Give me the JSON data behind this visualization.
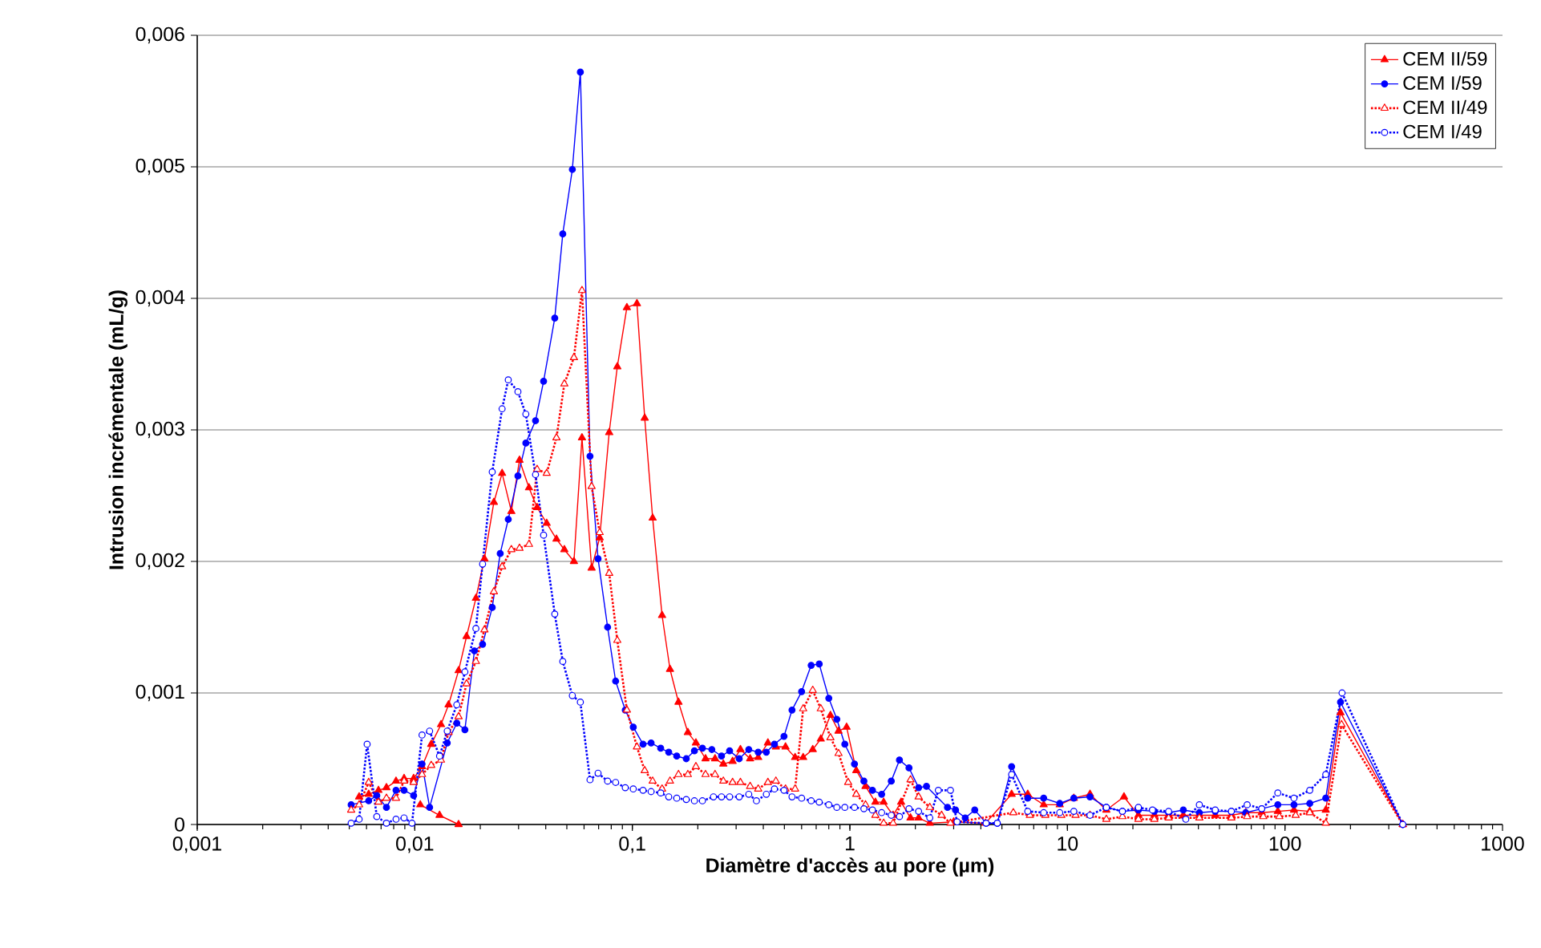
{
  "chart_data": {
    "type": "line",
    "xlabel": "Diamètre d'accès au pore (µm)",
    "ylabel": "Intrusion incrémentale (mL/g)",
    "log": "x",
    "grid": "y",
    "legend": "top right",
    "xlim": [
      0.001,
      1000
    ],
    "ylim": [
      0,
      0.006
    ],
    "xticks": [
      {
        "value": 0.001,
        "label": "0,001"
      },
      {
        "value": 0.01,
        "label": "0,01"
      },
      {
        "value": 0.1,
        "label": "0,1"
      },
      1,
      10,
      100,
      1000
    ],
    "yticks": [
      0,
      {
        "value": 0.001,
        "label": "0,001"
      },
      {
        "value": 0.002,
        "label": "0,002"
      },
      {
        "value": 0.003,
        "label": "0,003"
      },
      {
        "value": 0.004,
        "label": "0,004"
      },
      {
        "value": 0.005,
        "label": "0,005"
      },
      {
        "value": 0.006,
        "label": "0,006"
      }
    ],
    "series": [
      {
        "name": "CEM II/59",
        "color": "#ff0000",
        "marker": "triangle",
        "line_style": "solid",
        "x": [
          0.00555,
          0.00614,
          0.00681,
          0.00741,
          0.0082,
          0.00893,
          0.00988,
          0.0108,
          0.0119,
          0.0132,
          0.0143,
          0.0159,
          0.0173,
          0.0191,
          0.0209,
          0.0231,
          0.0252,
          0.0278,
          0.0303,
          0.0335,
          0.0365,
          0.0404,
          0.0448,
          0.0487,
          0.0539,
          0.0587,
          0.065,
          0.0708,
          0.0783,
          0.0853,
          0.0944,
          0.105,
          0.114,
          0.124,
          0.137,
          0.149,
          0.163,
          0.18,
          0.196,
          0.217,
          0.24,
          0.262,
          0.289,
          0.314,
          0.348,
          0.379,
          0.42,
          0.457,
          0.506,
          0.56,
          0.61,
          0.675,
          0.735,
          0.814,
          0.887,
          0.966,
          1.07,
          1.18,
          1.31,
          1.43,
          1.58,
          1.72,
          1.9,
          2.07,
          2.33,
          3.0,
          4.2,
          5.54,
          6.57,
          7.78,
          9.22,
          10.7,
          12.7,
          15.1,
          18.2,
          21.2,
          25.1,
          29.2,
          34.1,
          40.4,
          47.8,
          56.7,
          66,
          78.2,
          92.7,
          110,
          130,
          154,
          180,
          348
        ],
        "values": [
          0.00021,
          0.00023,
          0.00026,
          0.00028,
          0.00033,
          0.00035,
          0.00035,
          0.00044,
          0.00061,
          0.00076,
          0.00091,
          0.00117,
          0.00143,
          0.00172,
          0.00202,
          0.00245,
          0.00267,
          0.00238,
          0.00277,
          0.00256,
          0.00241,
          0.00229,
          0.00217,
          0.00209,
          0.002,
          0.00294,
          0.00195,
          0.00218,
          0.00298,
          0.00348,
          0.00393,
          0.00396,
          0.00309,
          0.00233,
          0.00159,
          0.00118,
          0.00093,
          0.0007,
          0.00062,
          0.0005,
          0.0005,
          0.00046,
          0.00048,
          0.00057,
          0.0005,
          0.00051,
          0.00062,
          0.00059,
          0.00059,
          0.00051,
          0.00051,
          0.00057,
          0.00065,
          0.00083,
          0.00071,
          0.00074,
          0.00041,
          0.00029,
          0.00017,
          0.00017,
          7e-05,
          0.00017,
          5e-05,
          5e-05,
          1e-05,
          2e-05,
          1e-05,
          0.00023,
          0.00023,
          0.00015,
          0.00015,
          0.0002,
          0.00023,
          0.00011,
          0.00021,
          7e-05,
          7e-05,
          7e-05,
          7e-05,
          7e-05,
          7e-05,
          7e-05,
          9e-05,
          9e-05,
          0.0001,
          0.00011,
          0.0001,
          0.00011,
          0.00085,
          0
        ]
      },
      {
        "color": "#ff0000",
        "marker": "triangle",
        "line_style": "solid",
        "x": [
          0.0106,
          0.013,
          0.0159
        ],
        "values": [
          0.00015,
          7e-05,
          0
        ]
      },
      {
        "name": "CEM I/59",
        "color": "#0000ff",
        "marker": "circle",
        "line_style": "solid",
        "x": [
          0.0051,
          0.00614,
          0.00669,
          0.00741,
          0.0082,
          0.00893,
          0.00988,
          0.0108,
          0.0117,
          0.0141,
          0.0156,
          0.017,
          0.0188,
          0.0205,
          0.0227,
          0.0247,
          0.0269,
          0.0298,
          0.0324,
          0.0359,
          0.0391,
          0.044,
          0.0479,
          0.053,
          0.0577,
          0.0639,
          0.0696,
          0.077,
          0.0838,
          0.0928,
          0.101,
          0.112,
          0.122,
          0.135,
          0.147,
          0.16,
          0.177,
          0.193,
          0.21,
          0.232,
          0.257,
          0.28,
          0.31,
          0.343,
          0.379,
          0.413,
          0.45,
          0.498,
          0.542,
          0.6,
          0.664,
          0.723,
          0.8,
          0.871,
          0.948,
          1.05,
          1.16,
          1.27,
          1.4,
          1.55,
          1.69,
          1.87,
          2.07,
          2.25,
          2.81,
          3.06,
          3.39,
          3.75,
          4.23,
          4.76,
          5.54,
          6.57,
          7.78,
          9.22,
          10.7,
          12.7,
          15.1,
          17.9,
          21.2,
          25.1,
          29.2,
          34.1,
          40.4,
          47.8,
          56.7,
          66,
          78.2,
          92.7,
          110,
          130,
          154,
          180,
          348
        ],
        "values": [
          0.00015,
          0.00018,
          0.00022,
          0.00013,
          0.00026,
          0.00026,
          0.00022,
          0.00046,
          0.00013,
          0.00062,
          0.00077,
          0.00072,
          0.00132,
          0.00137,
          0.00165,
          0.00206,
          0.00232,
          0.00265,
          0.0029,
          0.00307,
          0.00337,
          0.00385,
          0.00449,
          0.00498,
          0.00572,
          0.0028,
          0.00202,
          0.0015,
          0.00109,
          0.00087,
          0.00074,
          0.00061,
          0.00062,
          0.00058,
          0.00055,
          0.00052,
          0.0005,
          0.00056,
          0.00058,
          0.00057,
          0.00052,
          0.00056,
          0.0005,
          0.00057,
          0.00055,
          0.00055,
          0.00061,
          0.00067,
          0.00087,
          0.00101,
          0.00121,
          0.00122,
          0.00096,
          0.0008,
          0.00061,
          0.00046,
          0.00033,
          0.00026,
          0.00023,
          0.00033,
          0.00049,
          0.00043,
          0.00028,
          0.00029,
          0.00013,
          0.00011,
          5e-05,
          0.00011,
          1e-05,
          1e-05,
          0.00044,
          0.0002,
          0.0002,
          0.00016,
          0.0002,
          0.00021,
          0.00013,
          0.0001,
          0.00011,
          0.0001,
          9e-05,
          0.00011,
          9e-05,
          0.0001,
          0.0001,
          9e-05,
          0.00012,
          0.00015,
          0.00015,
          0.00016,
          0.0002,
          0.00093,
          0
        ]
      },
      {
        "name": "CEM II/49",
        "color": "#ff0000",
        "marker": "triangle",
        "line_style": "dotted",
        "x": [
          0.0051,
          0.00555,
          0.00614,
          0.00681,
          0.00741,
          0.0082,
          0.00893,
          0.00988,
          0.0108,
          0.0119,
          0.0132,
          0.0143,
          0.0159,
          0.0173,
          0.0191,
          0.0209,
          0.0231,
          0.0252,
          0.0278,
          0.0303,
          0.0335,
          0.0365,
          0.0404,
          0.0448,
          0.0487,
          0.0539,
          0.0587,
          0.065,
          0.0708,
          0.0783,
          0.0853,
          0.0944,
          0.105,
          0.114,
          0.124,
          0.137,
          0.149,
          0.163,
          0.18,
          0.196,
          0.217,
          0.24,
          0.262,
          0.289,
          0.314,
          0.348,
          0.379,
          0.42,
          0.457,
          0.506,
          0.56,
          0.61,
          0.675,
          0.735,
          0.814,
          0.887,
          0.982,
          1.07,
          1.18,
          1.31,
          1.43,
          1.58,
          1.9,
          2.07,
          2.33,
          2.64,
          2.9,
          5.64,
          6.72,
          7.91,
          9.37,
          10.9,
          12.7,
          15.1,
          17.9,
          21.2,
          25.1,
          29.2,
          40.4,
          56.7,
          67,
          79.5,
          94.2,
          112,
          130,
          154,
          182,
          348
        ],
        "values": [
          0.00011,
          0.00015,
          0.00032,
          0.00017,
          0.0002,
          0.0002,
          0.00033,
          0.00032,
          0.00038,
          0.00045,
          0.00049,
          0.0007,
          0.00082,
          0.00107,
          0.00124,
          0.00148,
          0.00177,
          0.00196,
          0.00209,
          0.0021,
          0.00213,
          0.0027,
          0.00267,
          0.00294,
          0.00335,
          0.00355,
          0.00406,
          0.00257,
          0.00222,
          0.00191,
          0.0014,
          0.00087,
          0.00059,
          0.00041,
          0.00033,
          0.00027,
          0.00033,
          0.00038,
          0.00038,
          0.00044,
          0.00038,
          0.00038,
          0.00033,
          0.00032,
          0.00032,
          0.00029,
          0.00027,
          0.00032,
          0.00033,
          0.00027,
          0.00027,
          0.00088,
          0.00102,
          0.00088,
          0.00066,
          0.00054,
          0.00032,
          0.00023,
          0.00015,
          7e-05,
          1e-05,
          1e-05,
          0.00034,
          0.00021,
          0.00013,
          7e-05,
          1e-05,
          9e-05,
          7e-05,
          7e-05,
          7e-05,
          7e-05,
          7e-05,
          4e-05,
          6e-05,
          4e-05,
          4e-05,
          5e-05,
          5e-05,
          5e-05,
          6e-05,
          6e-05,
          6e-05,
          7e-05,
          9e-05,
          1e-05,
          0.00076,
          0
        ]
      },
      {
        "name": "CEM I/49",
        "color": "#0000ff",
        "marker": "circle",
        "line_style": "dotted",
        "x": [
          0.0051,
          0.00555,
          0.00604,
          0.00669,
          0.00741,
          0.0082,
          0.00893,
          0.00971,
          0.0108,
          0.0117,
          0.013,
          0.0141,
          0.0156,
          0.017,
          0.0191,
          0.0205,
          0.0227,
          0.0252,
          0.0269,
          0.0298,
          0.0324,
          0.0359,
          0.0391,
          0.044,
          0.0479,
          0.053,
          0.0577,
          0.0639,
          0.0696,
          0.077,
          0.0838,
          0.0928,
          0.101,
          0.112,
          0.122,
          0.135,
          0.147,
          0.16,
          0.177,
          0.193,
          0.21,
          0.236,
          0.257,
          0.28,
          0.31,
          0.343,
          0.372,
          0.413,
          0.45,
          0.498,
          0.542,
          0.6,
          0.664,
          0.723,
          0.8,
          0.871,
          0.948,
          1.05,
          1.16,
          1.27,
          1.4,
          1.55,
          1.69,
          1.87,
          2.07,
          2.33,
          2.55,
          2.9,
          3.11,
          4.23,
          4.76,
          5.54,
          6.57,
          7.78,
          9.22,
          10.7,
          12.7,
          15.1,
          17.9,
          21.2,
          24.6,
          29.2,
          35,
          40.4,
          47.8,
          56.7,
          67,
          78.2,
          92.7,
          110,
          130,
          154,
          183,
          348
        ],
        "values": [
          1e-05,
          4e-05,
          0.00061,
          6e-05,
          1e-05,
          4e-05,
          5e-05,
          1e-05,
          0.00068,
          0.00071,
          0.00052,
          0.00071,
          0.00091,
          0.00116,
          0.00149,
          0.00198,
          0.00268,
          0.00316,
          0.00338,
          0.00329,
          0.00312,
          0.00266,
          0.0022,
          0.0016,
          0.00124,
          0.00098,
          0.00093,
          0.00034,
          0.00039,
          0.00033,
          0.00032,
          0.00028,
          0.00027,
          0.00026,
          0.00025,
          0.00024,
          0.00021,
          0.0002,
          0.00019,
          0.00018,
          0.00018,
          0.00021,
          0.00021,
          0.00021,
          0.00021,
          0.00023,
          0.00018,
          0.00023,
          0.00027,
          0.00026,
          0.00021,
          0.0002,
          0.00018,
          0.00017,
          0.00015,
          0.00013,
          0.00013,
          0.00013,
          0.00012,
          0.00011,
          9e-05,
          7e-05,
          6e-05,
          0.00012,
          0.0001,
          5e-05,
          0.00026,
          0.00026,
          2e-05,
          1e-05,
          1e-05,
          0.00038,
          0.0001,
          9e-05,
          9e-05,
          0.0001,
          7e-05,
          0.00013,
          0.0001,
          0.00013,
          0.00011,
          0.0001,
          4e-05,
          0.00015,
          0.00011,
          0.0001,
          0.00015,
          0.00012,
          0.00024,
          0.0002,
          0.00026,
          0.00038,
          0.001,
          0
        ]
      }
    ]
  }
}
